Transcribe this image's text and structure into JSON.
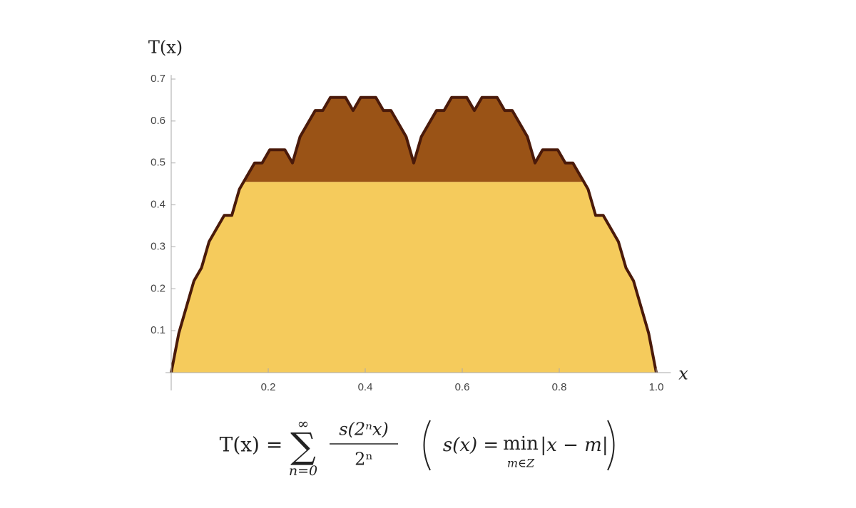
{
  "chart_data": {
    "type": "area",
    "ylabel": "T(x)",
    "xlabel": "x",
    "x": [
      0,
      0.015625,
      0.03125,
      0.046875,
      0.0625,
      0.078125,
      0.09375,
      0.109375,
      0.125,
      0.140625,
      0.15625,
      0.171875,
      0.1875,
      0.203125,
      0.21875,
      0.234375,
      0.25,
      0.265625,
      0.28125,
      0.296875,
      0.3125,
      0.328125,
      0.34375,
      0.359375,
      0.375,
      0.390625,
      0.40625,
      0.421875,
      0.4375,
      0.453125,
      0.46875,
      0.484375,
      0.5,
      0.515625,
      0.53125,
      0.546875,
      0.5625,
      0.578125,
      0.59375,
      0.609375,
      0.625,
      0.640625,
      0.65625,
      0.671875,
      0.6875,
      0.703125,
      0.71875,
      0.734375,
      0.75,
      0.765625,
      0.78125,
      0.796875,
      0.8125,
      0.828125,
      0.84375,
      0.859375,
      0.875,
      0.890625,
      0.90625,
      0.921875,
      0.9375,
      0.953125,
      0.96875,
      0.984375,
      1
    ],
    "values": [
      0,
      0.09375,
      0.15625,
      0.21875,
      0.25,
      0.3125,
      0.34375,
      0.375,
      0.375,
      0.4375,
      0.46875,
      0.5,
      0.5,
      0.53125,
      0.53125,
      0.53125,
      0.5,
      0.5625,
      0.59375,
      0.625,
      0.625,
      0.65625,
      0.65625,
      0.65625,
      0.625,
      0.65625,
      0.65625,
      0.65625,
      0.625,
      0.625,
      0.59375,
      0.5625,
      0.5,
      0.5625,
      0.59375,
      0.625,
      0.625,
      0.65625,
      0.65625,
      0.65625,
      0.625,
      0.65625,
      0.65625,
      0.65625,
      0.625,
      0.625,
      0.59375,
      0.5625,
      0.5,
      0.53125,
      0.53125,
      0.53125,
      0.5,
      0.5,
      0.46875,
      0.4375,
      0.375,
      0.375,
      0.34375,
      0.3125,
      0.25,
      0.21875,
      0.15625,
      0.09375,
      0
    ],
    "split_level": 0.455,
    "color_below": "#f5cb5c",
    "color_above": "#9a5316",
    "line_color": "#4a1a0a",
    "xlim": [
      0,
      1.03
    ],
    "ylim": [
      0,
      0.71
    ],
    "xticks": [
      0.2,
      0.4,
      0.6,
      0.8,
      {
        "value": 1,
        "label": "1.0"
      }
    ],
    "yticks": [
      0.1,
      0.2,
      0.3,
      0.4,
      0.5,
      0.6,
      0.7
    ],
    "formula": {
      "lhs": "T(x) =",
      "sum": "∑",
      "upper": "∞",
      "lower": "n=0",
      "numerator": "s(2ⁿx)",
      "denominator": "2ⁿ",
      "note_lhs": "s(x) =",
      "note_min": "min",
      "note_sub": "m∈Z",
      "note_rhs": "|x − m|"
    }
  }
}
